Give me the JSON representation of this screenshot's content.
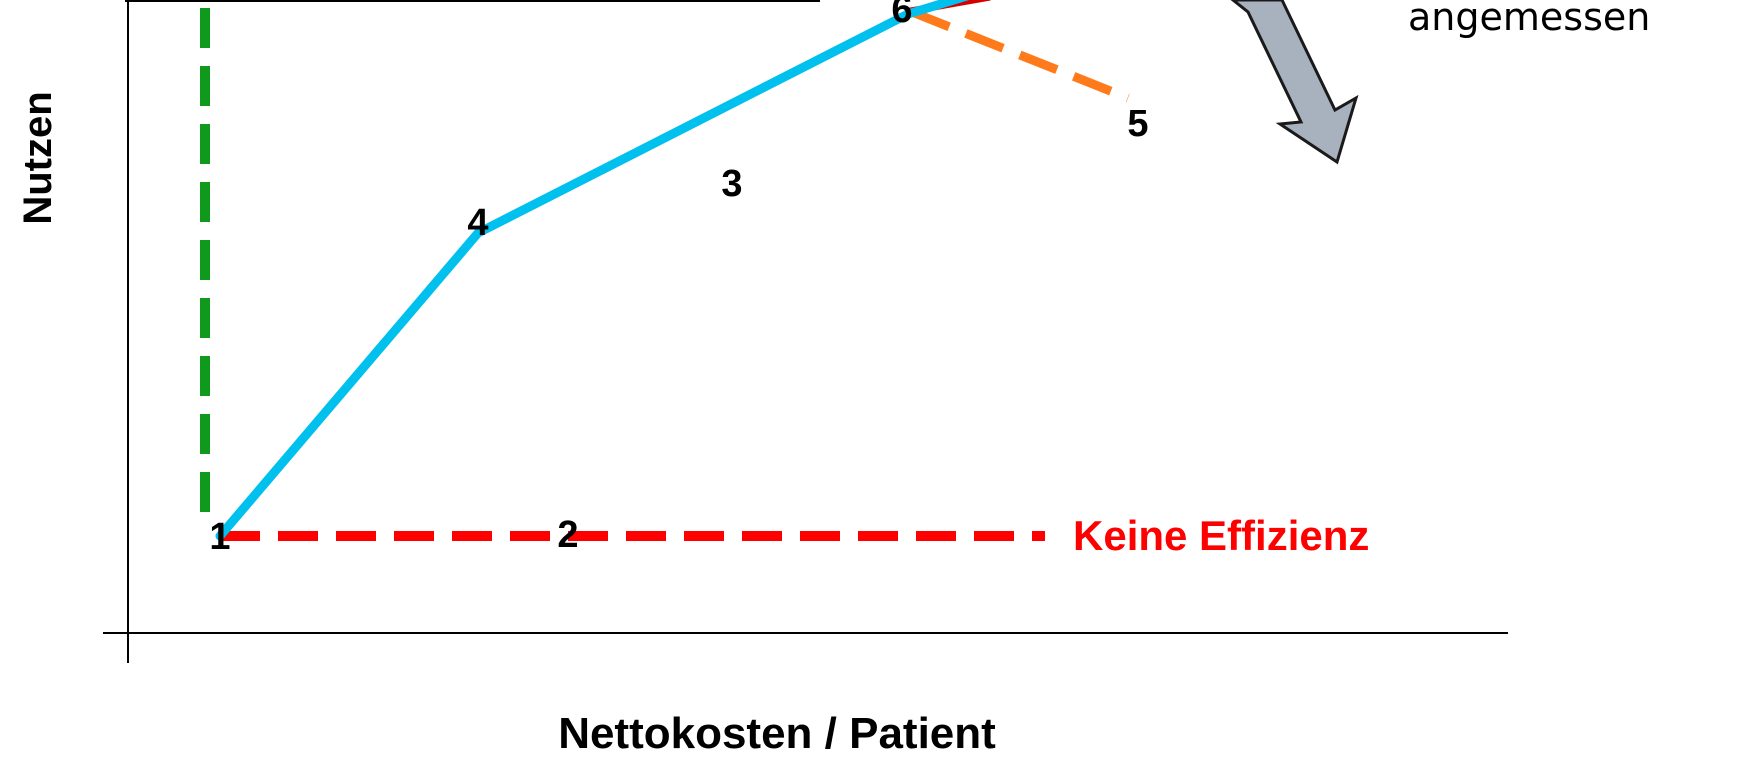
{
  "diagram": {
    "x_axis_label": "Nettokosten / Patient",
    "y_axis_label": "Nutzen",
    "note_top_right": "angemessen",
    "annotation_no_efficiency": "Keine Effizienz",
    "points": [
      {
        "id": "p1",
        "label": "1"
      },
      {
        "id": "p2",
        "label": "2"
      },
      {
        "id": "p3",
        "label": "3"
      },
      {
        "id": "p4",
        "label": "4"
      },
      {
        "id": "p5",
        "label": "5"
      },
      {
        "id": "p6",
        "label": "6"
      }
    ],
    "colors": {
      "efficiency_frontier": "#00C0EE",
      "no_efficiency_line": "#FF0000",
      "vertical_dashed": "#0F9A1E",
      "orange_dashed": "#FF7A1A",
      "red_segment": "#D40000",
      "arrow_fill": "#A8B2BE",
      "arrow_stroke": "#1A1A1A",
      "axis": "#000000",
      "text": "#000000",
      "red_text": "#FF0000"
    }
  }
}
